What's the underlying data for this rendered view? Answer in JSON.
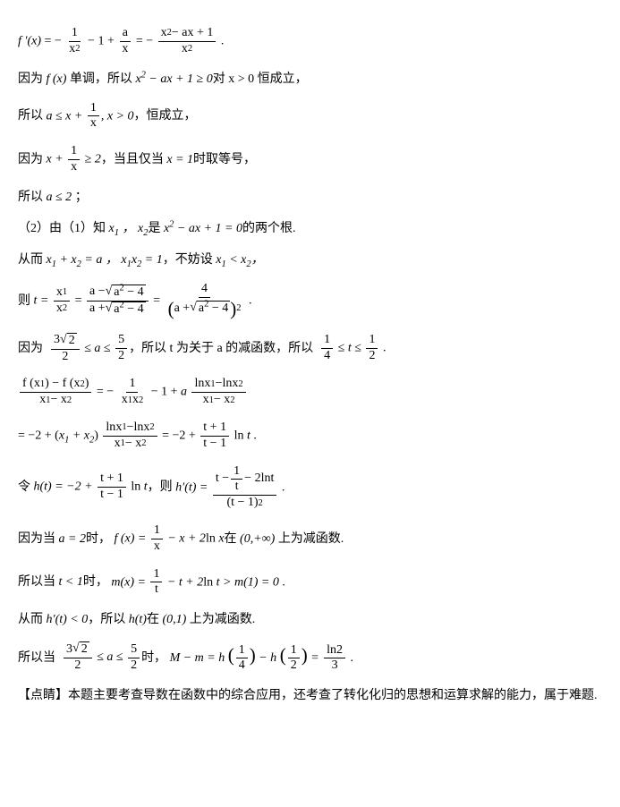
{
  "typography": {
    "body_font": "SimSun/宋体",
    "math_font": "Times New Roman",
    "font_size_pt": 14,
    "text_color": "#000000",
    "background_color": "#ffffff",
    "line_spacing": 14
  },
  "lines": {
    "l1": "f′(x) = − 1/x² − 1 + a/x = − (x² − ax + 1)/x² .",
    "l2_pre": "因为",
    "l2_mid": "单调，所以",
    "l2_math": "x² − ax + 1 ≥ 0",
    "l2_post": "对 x > 0 恒成立，",
    "l3_pre": "所以",
    "l3_math": "a ≤ x + 1/x, x > 0",
    "l3_post": "，恒成立，",
    "l4_pre": "因为",
    "l4_math": "x + 1/x ≥ 2",
    "l4_mid": "，当且仅当",
    "l4_math2": "x = 1",
    "l4_post": "时取等号，",
    "l5_pre": "所以",
    "l5_math": "a ≤ 2",
    "l5_post": "；",
    "l6_pre": "（2）由（1）知",
    "l6_mid": "是",
    "l6_math": "x² − ax + 1 = 0",
    "l6_post": "的两个根.",
    "l7_pre": "从而",
    "l7_m1": "x₁ + x₂ = a",
    "l7_m2": "x₁x₂ = 1",
    "l7_mid": "，不妨设",
    "l7_m3": "x₁ < x₂",
    "l8_pre": "则",
    "l8_math": "t = x₁/x₂ = (a − √(a²−4))/(a + √(a²−4)) = 4/(a + √(a²−4))² .",
    "l9_pre": "因为",
    "l9_m1": "3√2/2 ≤ a ≤ 5/2",
    "l9_mid": "，所以 t 为关于 a 的减函数，所以",
    "l9_m2": "1/4 ≤ t ≤ 1/2",
    "l10": "(f(x₁) − f(x₂))/(x₁ − x₂) = − 1/(x₁x₂) − 1 + a (ln x₁ − ln x₂)/(x₁ − x₂)",
    "l11": "= −2 + (x₁ + x₂) (ln x₁ − ln x₂)/(x₁ − x₂) = −2 + (t+1)/(t−1) ln t .",
    "l12_pre": "令",
    "l12_m1": "h(t) = −2 + (t+1)/(t−1) ln t",
    "l12_mid": "，则",
    "l12_m2": "h′(t) = (t − 1/t − 2ln t)/(t−1)² .",
    "l13_pre": "因为当",
    "l13_m1": "a = 2",
    "l13_mid": "时，",
    "l13_m2": "f(x) = 1/x − x + 2ln x",
    "l13_post": "在 (0,+∞) 上为减函数.",
    "l14_pre": "所以当",
    "l14_m1": "t < 1",
    "l14_mid": "时，",
    "l14_m2": "m(x) = 1/t − t + 2ln t > m(1) = 0",
    "l15_pre": "从而",
    "l15_m1": "h′(t) < 0",
    "l15_mid": "，所以",
    "l15_m2": "h(t)",
    "l15_post": "在 (0,1) 上为减函数.",
    "l16_pre": "所以当",
    "l16_m1": "3√2/2 ≤ a ≤ 5/2",
    "l16_mid": "时，",
    "l16_m2": "M − m = h(1/4) − h(1/2) = ln2/3",
    "l17": "【点睛】本题主要考查导数在函数中的综合应用，还考查了转化化归的思想和运算求解的能力，属于难题."
  }
}
